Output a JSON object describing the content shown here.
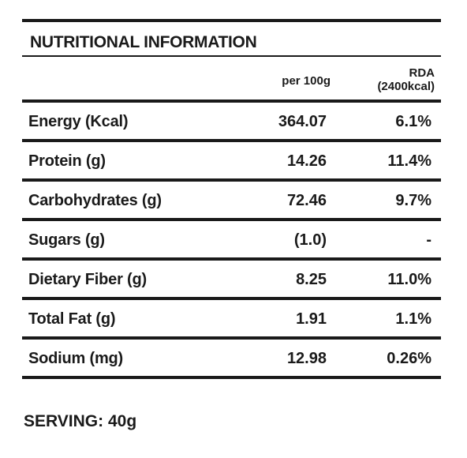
{
  "title": "NUTRITIONAL INFORMATION",
  "columns": {
    "per": "per 100g",
    "rda_line1": "RDA",
    "rda_line2": "(2400kcal)"
  },
  "rows": [
    {
      "label": "Energy (Kcal)",
      "per": "364.07",
      "rda": "6.1%"
    },
    {
      "label": "Protein (g)",
      "per": "14.26",
      "rda": "11.4%"
    },
    {
      "label": "Carbohydrates (g)",
      "per": "72.46",
      "rda": "9.7%"
    },
    {
      "label": "Sugars (g)",
      "per": "(1.0)",
      "rda": "-"
    },
    {
      "label": "Dietary Fiber (g)",
      "per": "8.25",
      "rda": "11.0%"
    },
    {
      "label": "Total Fat (g)",
      "per": "1.91",
      "rda": "1.1%"
    },
    {
      "label": "Sodium (mg)",
      "per": "12.98",
      "rda": "0.26%"
    }
  ],
  "serving": "SERVING: 40g",
  "colors": {
    "text": "#1a1a1a",
    "rule": "#1a1a1a",
    "background": "#ffffff"
  }
}
